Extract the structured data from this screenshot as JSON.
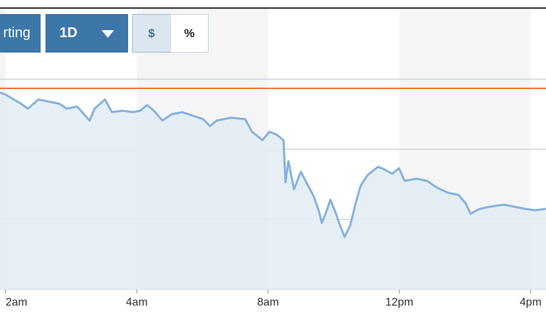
{
  "controls": {
    "buttons": [
      "rting",
      "1D",
      "$",
      "%"
    ]
  },
  "chart_data": {
    "type": "line",
    "x": [
      -0.17,
      0,
      0.47,
      0.68,
      1.0,
      1.32,
      1.64,
      1.86,
      2.18,
      2.56,
      2.71,
      3.03,
      3.24,
      3.56,
      3.88,
      4.1,
      4.31,
      4.52,
      4.78,
      5.06,
      5.38,
      5.7,
      6.02,
      6.23,
      6.44,
      6.87,
      7.3,
      7.51,
      7.83,
      8.04,
      8.26,
      8.47,
      8.53,
      8.62,
      8.79,
      9.0,
      9.22,
      9.39,
      9.54,
      9.64,
      9.75,
      9.9,
      10.03,
      10.18,
      10.33,
      10.5,
      10.67,
      10.82,
      11.03,
      11.35,
      11.56,
      11.78,
      11.99,
      12.16,
      12.52,
      12.84,
      13.16,
      13.48,
      13.8,
      14.02,
      14.17,
      14.45,
      14.76,
      15.19,
      15.51,
      15.83,
      16.15,
      16.47
    ],
    "series": [
      {
        "color": "#85b1de",
        "fill": "#e3ecf5",
        "values": [
          2.81,
          2.78,
          2.65,
          2.58,
          2.71,
          2.68,
          2.65,
          2.58,
          2.61,
          2.41,
          2.58,
          2.71,
          2.53,
          2.55,
          2.53,
          2.55,
          2.63,
          2.55,
          2.41,
          2.5,
          2.53,
          2.48,
          2.43,
          2.33,
          2.41,
          2.45,
          2.43,
          2.25,
          2.13,
          2.25,
          2.21,
          2.13,
          1.53,
          1.83,
          1.43,
          1.68,
          1.48,
          1.33,
          1.13,
          0.95,
          1.08,
          1.28,
          1.13,
          0.93,
          0.75,
          0.91,
          1.23,
          1.48,
          1.63,
          1.75,
          1.71,
          1.65,
          1.73,
          1.55,
          1.58,
          1.55,
          1.45,
          1.38,
          1.35,
          1.23,
          1.08,
          1.15,
          1.18,
          1.21,
          1.18,
          1.15,
          1.13,
          1.15
        ]
      }
    ],
    "xlim": [
      -0.17,
      16.47
    ],
    "xticks": [
      {
        "value": 0,
        "label": "2am"
      },
      {
        "value": 4,
        "label": "4am"
      },
      {
        "value": 8,
        "label": "8am"
      },
      {
        "value": 12,
        "label": "12pm"
      },
      {
        "value": 16,
        "label": "4pm"
      }
    ],
    "ylim": [
      0,
      4
    ],
    "ygrid": [
      1,
      2,
      3
    ],
    "reference_value": 2.87,
    "reference_color": "#e8743b",
    "band_color": "#f5f5f5"
  }
}
